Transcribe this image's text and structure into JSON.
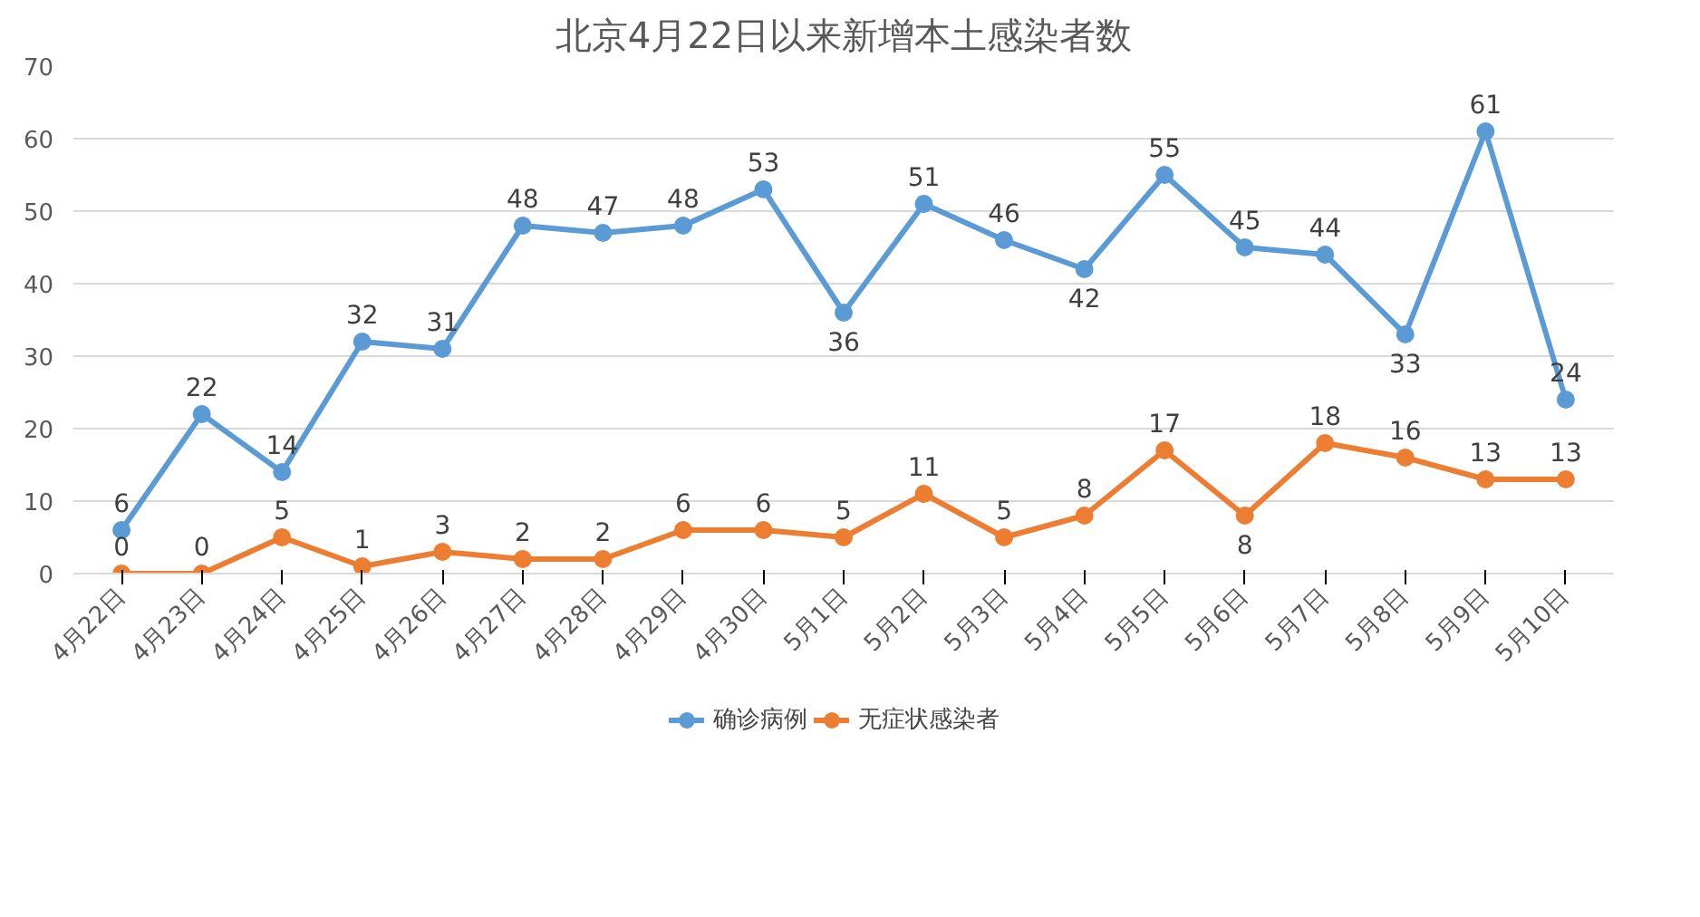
{
  "chart_data": {
    "type": "line",
    "title": "北京4月22日以来新增本土感染者数",
    "categories": [
      "4月22日",
      "4月23日",
      "4月24日",
      "4月25日",
      "4月26日",
      "4月27日",
      "4月28日",
      "4月29日",
      "4月30日",
      "5月1日",
      "5月2日",
      "5月3日",
      "5月4日",
      "5月5日",
      "5月6日",
      "5月7日",
      "5月8日",
      "5月9日",
      "5月10日"
    ],
    "series": [
      {
        "name": "确诊病例",
        "color": "#5b9bd5",
        "values": [
          6,
          22,
          14,
          32,
          31,
          48,
          47,
          48,
          53,
          36,
          51,
          46,
          42,
          55,
          45,
          44,
          33,
          61,
          24
        ]
      },
      {
        "name": "无症状感染者",
        "color": "#ed7d31",
        "values": [
          0,
          0,
          5,
          1,
          3,
          2,
          2,
          6,
          6,
          5,
          11,
          5,
          8,
          17,
          8,
          18,
          16,
          13,
          13
        ]
      }
    ],
    "ylim": [
      0,
      70
    ],
    "yticks": [
      0,
      10,
      20,
      30,
      40,
      50,
      60,
      70
    ],
    "grid": "y",
    "legend": "bottom",
    "marker": "circle",
    "line_style": "solid",
    "data_labels": true
  }
}
